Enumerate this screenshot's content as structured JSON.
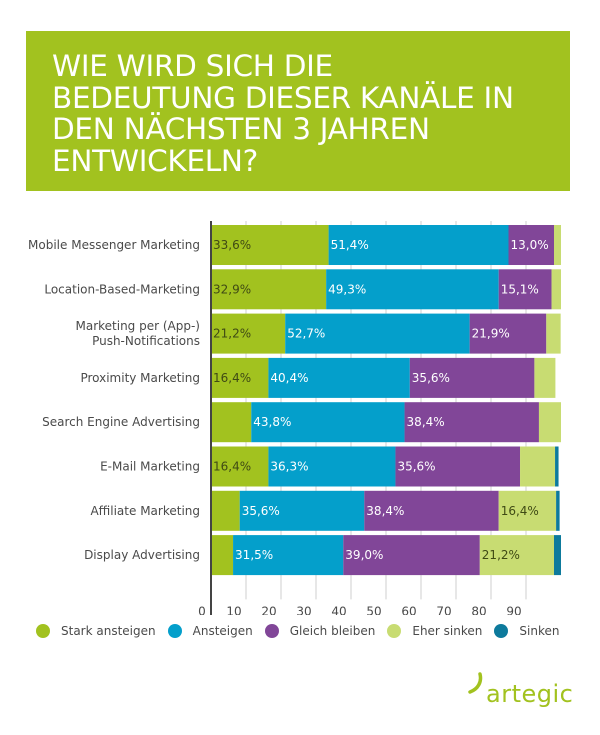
{
  "banner": {
    "title": "WIE WIRD SICH DIE BEDEUTUNG DIESER KANÄLE IN DEN NÄCHSTEN 3 JAHREN ENTWICKELN?",
    "title_lines": [
      "WIE WIRD SICH DIE",
      "BEDEUTUNG DIESER KANÄLE IN",
      "DEN NÄCHSTEN 3 JAHREN",
      "ENTWICKELN?"
    ],
    "color": "#a2c21f"
  },
  "chart_data": {
    "type": "bar",
    "orientation": "horizontal",
    "stacked": true,
    "title": "WIE WIRD SICH DIE BEDEUTUNG DIESER KANÄLE IN DEN NÄCHSTEN 3 JAHREN ENTWICKELN?",
    "xlabel": "",
    "ylabel": "",
    "xlim": [
      0,
      100
    ],
    "x_ticks": [
      0,
      10,
      20,
      30,
      40,
      50,
      60,
      70,
      80,
      90
    ],
    "grid": true,
    "legend_position": "bottom",
    "categories": [
      [
        "Mobile Messenger Marketing"
      ],
      [
        "Location-Based-Marketing"
      ],
      [
        "Marketing per (App-)",
        "Push-Notifications"
      ],
      [
        "Proximity Marketing"
      ],
      [
        "Search Engine Advertising"
      ],
      [
        "E-Mail Marketing"
      ],
      [
        "Affiliate Marketing"
      ],
      [
        "Display Advertising"
      ]
    ],
    "series": [
      {
        "name": "Stark ansteigen",
        "color": "#a2c21f",
        "label_color": "#3f4a14",
        "values": [
          33.6,
          32.9,
          21.2,
          16.4,
          11.5,
          16.4,
          8.2,
          6.3
        ],
        "labels": [
          "33,6%",
          "32,9%",
          "21,2%",
          "16,4%",
          "",
          "16,4%",
          "",
          ""
        ]
      },
      {
        "name": "Ansteigen",
        "color": "#049fcb",
        "label_color": "#ffffff",
        "values": [
          51.4,
          49.3,
          52.7,
          40.4,
          43.8,
          36.3,
          35.6,
          31.5
        ],
        "labels": [
          "51,4%",
          "49,3%",
          "52,7%",
          "40,4%",
          "43,8%",
          "36,3%",
          "35,6%",
          "31,5%"
        ]
      },
      {
        "name": "Gleich bleiben",
        "color": "#814698",
        "label_color": "#ffffff",
        "values": [
          13.0,
          15.1,
          21.9,
          35.6,
          38.4,
          35.6,
          38.4,
          39.0
        ],
        "labels": [
          "13,0%",
          "15,1%",
          "21,9%",
          "35,6%",
          "38,4%",
          "35,6%",
          "38,4%",
          "39,0%"
        ]
      },
      {
        "name": "Eher sinken",
        "color": "#c8dc72",
        "label_color": "#3f4a14",
        "values": [
          2.0,
          2.7,
          4.1,
          6.0,
          6.3,
          10.0,
          16.4,
          21.2
        ],
        "labels": [
          "",
          "",
          "",
          "",
          "",
          "",
          "16,4%",
          "21,2%"
        ]
      },
      {
        "name": "Sinken",
        "color": "#0d7a9c",
        "label_color": "#ffffff",
        "values": [
          0,
          0,
          0,
          0,
          0,
          1.0,
          1.0,
          2.0
        ],
        "labels": [
          "",
          "",
          "",
          "",
          "",
          "",
          "",
          ""
        ]
      }
    ]
  },
  "legend": {
    "items": [
      {
        "label": "Stark ansteigen",
        "color": "#a2c21f"
      },
      {
        "label": "Ansteigen",
        "color": "#049fcb"
      },
      {
        "label": "Gleich bleiben",
        "color": "#814698"
      },
      {
        "label": "Eher sinken",
        "color": "#c8dc72"
      },
      {
        "label": "Sinken",
        "color": "#0d7a9c"
      }
    ]
  },
  "logo": {
    "text": "artegic",
    "color": "#a2c21f"
  }
}
